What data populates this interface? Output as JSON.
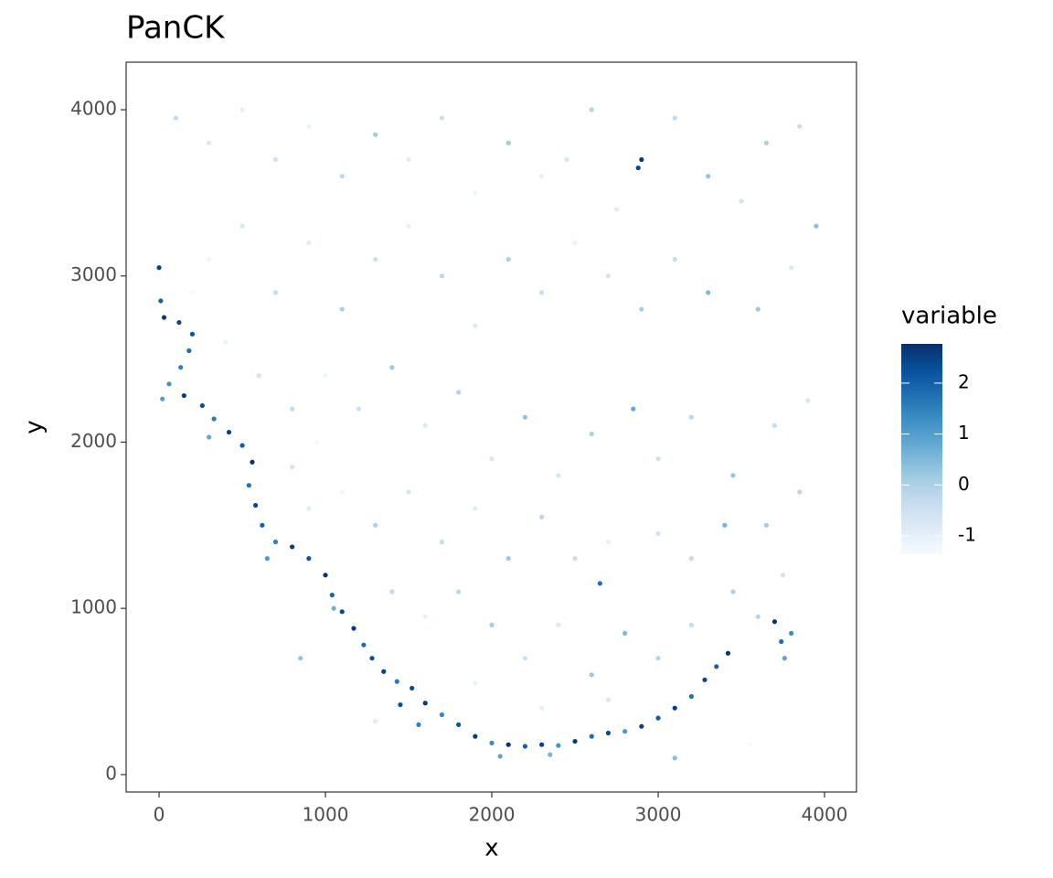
{
  "chart_data": {
    "type": "scatter",
    "title": "PanCK",
    "x_label": "x",
    "y_label": "y",
    "legend_title": "variable",
    "xlim": [
      -198,
      4192
    ],
    "ylim": [
      -105,
      4286
    ],
    "xticks": [
      0,
      1000,
      2000,
      3000,
      4000
    ],
    "yticks": [
      0,
      1000,
      2000,
      3000,
      4000
    ],
    "grid": false,
    "color_lim": [
      -1.36,
      2.77
    ],
    "color_ticks": [
      -1,
      0,
      1,
      2
    ],
    "colorscale": [
      "#f7fbff",
      "#deebf7",
      "#c6dbef",
      "#9ecae1",
      "#6baed6",
      "#4292c6",
      "#2171b5",
      "#08519c",
      "#08306b"
    ],
    "x": [
      0,
      10,
      30,
      120,
      200,
      180,
      130,
      60,
      20,
      150,
      260,
      330,
      420,
      500,
      560,
      540,
      580,
      620,
      700,
      800,
      900,
      1000,
      1040,
      1100,
      1170,
      1230,
      1280,
      1350,
      1430,
      1520,
      1600,
      1700,
      1800,
      1900,
      2000,
      2100,
      2200,
      2300,
      2400,
      2500,
      2600,
      2700,
      2800,
      2900,
      3000,
      3100,
      3200,
      3280,
      3350,
      3420,
      3700,
      3740,
      3800,
      3760,
      1560,
      1450,
      300,
      650,
      1050,
      2050,
      2350,
      100,
      300,
      500,
      700,
      900,
      1100,
      1300,
      1500,
      1700,
      1900,
      2100,
      2300,
      2450,
      2600,
      2750,
      2900,
      2880,
      3100,
      3300,
      3500,
      3650,
      3850,
      3950,
      3800,
      3600,
      3300,
      3100,
      2900,
      2700,
      2500,
      2300,
      2100,
      1900,
      1700,
      1500,
      1300,
      1100,
      900,
      700,
      500,
      300,
      200,
      400,
      600,
      800,
      1000,
      950,
      1200,
      1400,
      1600,
      1800,
      2000,
      2200,
      2400,
      2600,
      2850,
      3000,
      3200,
      3450,
      3700,
      3900,
      3850,
      3650,
      3400,
      3200,
      3000,
      2700,
      2650,
      2500,
      2300,
      2100,
      1900,
      1700,
      1500,
      1300,
      1100,
      900,
      800,
      1400,
      1600,
      1800,
      2000,
      2200,
      2400,
      2600,
      2800,
      3000,
      3200,
      3450,
      3750,
      3600,
      1900,
      2300,
      2700,
      3100,
      3550,
      1300,
      850
    ],
    "y": [
      3050,
      2850,
      2750,
      2720,
      2650,
      2550,
      2450,
      2350,
      2260,
      2280,
      2220,
      2140,
      2060,
      1980,
      1880,
      1740,
      1620,
      1500,
      1400,
      1370,
      1300,
      1200,
      1080,
      980,
      880,
      780,
      700,
      620,
      560,
      520,
      430,
      360,
      300,
      230,
      190,
      180,
      170,
      180,
      175,
      200,
      230,
      250,
      260,
      290,
      340,
      400,
      470,
      570,
      650,
      730,
      920,
      800,
      850,
      700,
      300,
      420,
      2030,
      1300,
      1000,
      110,
      120,
      3950,
      3800,
      4000,
      3700,
      3900,
      3600,
      3850,
      3700,
      3950,
      3500,
      3800,
      3600,
      3700,
      4000,
      3400,
      3700,
      3650,
      3950,
      3600,
      3450,
      3800,
      3900,
      3300,
      3050,
      2800,
      2900,
      3100,
      2800,
      3000,
      3200,
      2900,
      3100,
      2700,
      3000,
      3300,
      3100,
      2800,
      3200,
      2900,
      3300,
      3100,
      2900,
      2600,
      2400,
      2200,
      2400,
      2000,
      2200,
      2450,
      2100,
      2300,
      1900,
      2150,
      1800,
      2050,
      2200,
      1900,
      2150,
      1800,
      2100,
      2250,
      1700,
      1500,
      1500,
      1300,
      1450,
      1400,
      1150,
      1300,
      1550,
      1300,
      1600,
      1400,
      1700,
      1500,
      1700,
      1600,
      1850,
      1100,
      950,
      1100,
      900,
      700,
      900,
      600,
      850,
      700,
      900,
      1100,
      1200,
      950,
      550,
      400,
      450,
      100,
      180,
      320,
      700
    ],
    "values": [
      2.5,
      2.0,
      2.6,
      2.4,
      2.2,
      1.8,
      1.5,
      1.2,
      1.0,
      2.6,
      2.3,
      1.6,
      2.5,
      2.1,
      2.7,
      1.7,
      2.4,
      2.0,
      1.5,
      2.6,
      2.2,
      2.7,
      1.9,
      2.4,
      2.6,
      1.8,
      2.3,
      2.5,
      1.6,
      2.4,
      2.6,
      1.4,
      2.2,
      2.6,
      1.3,
      2.7,
      2.0,
      2.5,
      1.2,
      2.6,
      1.8,
      2.4,
      1.1,
      2.5,
      2.1,
      2.6,
      1.7,
      2.4,
      2.0,
      2.6,
      2.7,
      1.8,
      1.3,
      0.9,
      1.5,
      2.3,
      0.8,
      1.1,
      0.7,
      0.9,
      0.6,
      -0.3,
      -0.8,
      -1.0,
      -0.5,
      -1.1,
      -0.2,
      0.1,
      -0.9,
      -0.4,
      -1.2,
      0.2,
      -1.0,
      -0.7,
      -0.1,
      -0.9,
      2.6,
      2.4,
      -0.3,
      0.3,
      -0.6,
      0.0,
      -0.4,
      0.4,
      -0.8,
      0.2,
      0.5,
      -0.3,
      0.1,
      -0.6,
      -1.1,
      -0.4,
      0.0,
      -0.8,
      -0.2,
      -1.0,
      -0.5,
      0.0,
      -0.9,
      -0.4,
      -0.7,
      -1.2,
      -1.3,
      -1.1,
      -0.6,
      -0.3,
      -1.2,
      -1.3,
      -0.5,
      0.2,
      -0.8,
      -0.1,
      -0.7,
      0.3,
      -0.6,
      0.0,
      0.8,
      -0.5,
      -0.2,
      0.3,
      -0.4,
      -0.7,
      -0.2,
      0.1,
      0.6,
      -0.3,
      -0.6,
      -1.0,
      1.8,
      -0.4,
      -0.2,
      0.2,
      -0.9,
      -0.4,
      -0.7,
      0.0,
      -1.2,
      -0.9,
      -0.6,
      -0.3,
      -1.0,
      -0.2,
      0.1,
      -0.5,
      -0.8,
      0.2,
      0.5,
      -0.1,
      -0.4,
      0.0,
      -0.6,
      -0.2,
      -1.1,
      -1.0,
      -0.7,
      0.4,
      -1.3,
      -0.9,
      0.3
    ]
  }
}
